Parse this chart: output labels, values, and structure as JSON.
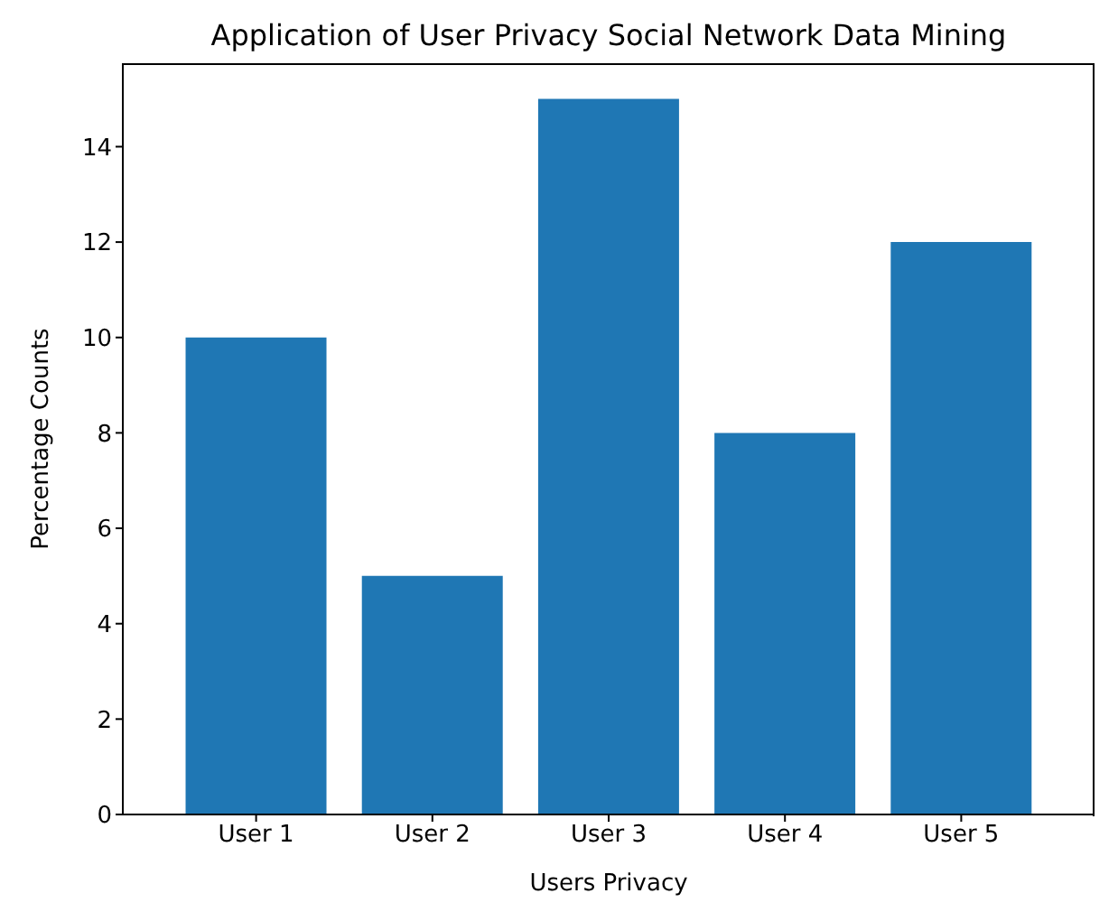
{
  "chart_data": {
    "type": "bar",
    "title": "Application of User Privacy Social Network Data Mining",
    "xlabel": "Users Privacy",
    "ylabel": "Percentage  Counts",
    "categories": [
      "User 1",
      "User 2",
      "User 3",
      "User 4",
      "User 5"
    ],
    "values": [
      10,
      5,
      15,
      8,
      12
    ],
    "color": "#1f77b4",
    "ylim": [
      0,
      15.75
    ],
    "yticks": [
      0,
      2,
      4,
      6,
      8,
      10,
      12,
      14
    ],
    "grid": false
  }
}
